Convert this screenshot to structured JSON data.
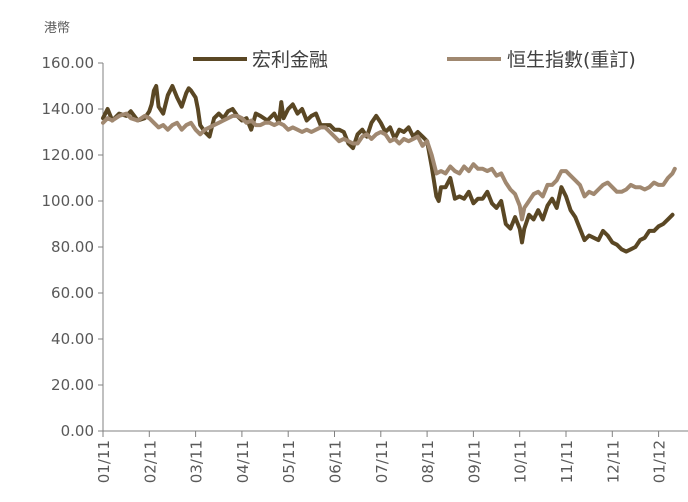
{
  "chart_data": {
    "type": "line",
    "title": "",
    "unit_label": "港幣",
    "xlabel": "",
    "ylabel": "",
    "ylim": [
      0,
      160
    ],
    "y_ticks": [
      0,
      20,
      40,
      60,
      80,
      100,
      120,
      140,
      160
    ],
    "y_tick_labels": [
      "0.00",
      "20.00",
      "40.00",
      "60.00",
      "80.00",
      "100.00",
      "120.00",
      "140.00",
      "160.00"
    ],
    "x_tick_labels": [
      "01/11",
      "02/11",
      "03/11",
      "04/11",
      "05/11",
      "06/11",
      "07/11",
      "08/11",
      "09/11",
      "10/11",
      "11/11",
      "12/11",
      "01/12"
    ],
    "legend_position": "top",
    "grid": false,
    "series": [
      {
        "name": "宏利金融",
        "color": "#5a4724",
        "values": [
          [
            0.0,
            136
          ],
          [
            0.1,
            140
          ],
          [
            0.2,
            135
          ],
          [
            0.35,
            138
          ],
          [
            0.5,
            137
          ],
          [
            0.6,
            139
          ],
          [
            0.75,
            135
          ],
          [
            0.9,
            136
          ],
          [
            1.0,
            139
          ],
          [
            1.05,
            142
          ],
          [
            1.1,
            148
          ],
          [
            1.15,
            150
          ],
          [
            1.2,
            141
          ],
          [
            1.3,
            138
          ],
          [
            1.4,
            146
          ],
          [
            1.5,
            150
          ],
          [
            1.6,
            145
          ],
          [
            1.7,
            141
          ],
          [
            1.8,
            147
          ],
          [
            1.85,
            149
          ],
          [
            1.9,
            148
          ],
          [
            2.0,
            145
          ],
          [
            2.05,
            140
          ],
          [
            2.1,
            133
          ],
          [
            2.2,
            130
          ],
          [
            2.3,
            128
          ],
          [
            2.4,
            136
          ],
          [
            2.5,
            138
          ],
          [
            2.6,
            136
          ],
          [
            2.7,
            139
          ],
          [
            2.8,
            140
          ],
          [
            2.9,
            137
          ],
          [
            3.0,
            135
          ],
          [
            3.1,
            136
          ],
          [
            3.2,
            131
          ],
          [
            3.3,
            138
          ],
          [
            3.4,
            137
          ],
          [
            3.55,
            135
          ],
          [
            3.7,
            138
          ],
          [
            3.8,
            134
          ],
          [
            3.85,
            143
          ],
          [
            3.9,
            136
          ],
          [
            4.0,
            140
          ],
          [
            4.1,
            142
          ],
          [
            4.2,
            138
          ],
          [
            4.3,
            140
          ],
          [
            4.4,
            135
          ],
          [
            4.5,
            137
          ],
          [
            4.6,
            138
          ],
          [
            4.7,
            133
          ],
          [
            4.8,
            133
          ],
          [
            4.9,
            133
          ],
          [
            5.0,
            131
          ],
          [
            5.1,
            131
          ],
          [
            5.2,
            130
          ],
          [
            5.3,
            125
          ],
          [
            5.4,
            123
          ],
          [
            5.5,
            129
          ],
          [
            5.6,
            131
          ],
          [
            5.7,
            128
          ],
          [
            5.8,
            134
          ],
          [
            5.9,
            137
          ],
          [
            6.0,
            134
          ],
          [
            6.1,
            130
          ],
          [
            6.2,
            132
          ],
          [
            6.3,
            127
          ],
          [
            6.4,
            131
          ],
          [
            6.5,
            130
          ],
          [
            6.6,
            132
          ],
          [
            6.7,
            128
          ],
          [
            6.8,
            130
          ],
          [
            6.9,
            128
          ],
          [
            7.0,
            126
          ],
          [
            7.1,
            115
          ],
          [
            7.2,
            102
          ],
          [
            7.25,
            100
          ],
          [
            7.3,
            106
          ],
          [
            7.4,
            106
          ],
          [
            7.5,
            110
          ],
          [
            7.6,
            101
          ],
          [
            7.7,
            102
          ],
          [
            7.8,
            101
          ],
          [
            7.9,
            104
          ],
          [
            8.0,
            99
          ],
          [
            8.1,
            101
          ],
          [
            8.2,
            101
          ],
          [
            8.3,
            104
          ],
          [
            8.4,
            99
          ],
          [
            8.5,
            97
          ],
          [
            8.6,
            100
          ],
          [
            8.7,
            90
          ],
          [
            8.8,
            88
          ],
          [
            8.9,
            93
          ],
          [
            9.0,
            88
          ],
          [
            9.05,
            82
          ],
          [
            9.1,
            88
          ],
          [
            9.2,
            94
          ],
          [
            9.3,
            92
          ],
          [
            9.4,
            96
          ],
          [
            9.5,
            92
          ],
          [
            9.6,
            98
          ],
          [
            9.7,
            101
          ],
          [
            9.8,
            97
          ],
          [
            9.9,
            106
          ],
          [
            10.0,
            102
          ],
          [
            10.1,
            96
          ],
          [
            10.2,
            93
          ],
          [
            10.3,
            88
          ],
          [
            10.4,
            83
          ],
          [
            10.5,
            85
          ],
          [
            10.6,
            84
          ],
          [
            10.7,
            83
          ],
          [
            10.8,
            87
          ],
          [
            10.9,
            85
          ],
          [
            11.0,
            82
          ],
          [
            11.1,
            81
          ],
          [
            11.2,
            79
          ],
          [
            11.3,
            78
          ],
          [
            11.4,
            79
          ],
          [
            11.5,
            80
          ],
          [
            11.6,
            83
          ],
          [
            11.7,
            84
          ],
          [
            11.8,
            87
          ],
          [
            11.9,
            87
          ],
          [
            12.0,
            89
          ],
          [
            12.1,
            90
          ],
          [
            12.2,
            92
          ],
          [
            12.3,
            94
          ]
        ]
      },
      {
        "name": "恒生指數(重訂)",
        "color": "#a08870",
        "values": [
          [
            0.0,
            134
          ],
          [
            0.1,
            136
          ],
          [
            0.2,
            135
          ],
          [
            0.35,
            137
          ],
          [
            0.5,
            138
          ],
          [
            0.6,
            136
          ],
          [
            0.75,
            135
          ],
          [
            0.9,
            137
          ],
          [
            1.0,
            136
          ],
          [
            1.1,
            134
          ],
          [
            1.2,
            132
          ],
          [
            1.3,
            133
          ],
          [
            1.4,
            131
          ],
          [
            1.5,
            133
          ],
          [
            1.6,
            134
          ],
          [
            1.7,
            131
          ],
          [
            1.8,
            133
          ],
          [
            1.9,
            134
          ],
          [
            2.0,
            131
          ],
          [
            2.1,
            129
          ],
          [
            2.2,
            131
          ],
          [
            2.3,
            132
          ],
          [
            2.4,
            133
          ],
          [
            2.5,
            134
          ],
          [
            2.6,
            135
          ],
          [
            2.7,
            136
          ],
          [
            2.8,
            137
          ],
          [
            2.9,
            137
          ],
          [
            3.0,
            136
          ],
          [
            3.1,
            134
          ],
          [
            3.2,
            135
          ],
          [
            3.3,
            133
          ],
          [
            3.4,
            133
          ],
          [
            3.5,
            134
          ],
          [
            3.6,
            134
          ],
          [
            3.7,
            133
          ],
          [
            3.8,
            134
          ],
          [
            3.9,
            133
          ],
          [
            4.0,
            131
          ],
          [
            4.1,
            132
          ],
          [
            4.2,
            131
          ],
          [
            4.3,
            130
          ],
          [
            4.4,
            131
          ],
          [
            4.5,
            130
          ],
          [
            4.6,
            131
          ],
          [
            4.7,
            132
          ],
          [
            4.8,
            132
          ],
          [
            4.9,
            130
          ],
          [
            5.0,
            128
          ],
          [
            5.1,
            126
          ],
          [
            5.2,
            127
          ],
          [
            5.3,
            126
          ],
          [
            5.4,
            125
          ],
          [
            5.5,
            125
          ],
          [
            5.6,
            128
          ],
          [
            5.7,
            129
          ],
          [
            5.8,
            127
          ],
          [
            5.9,
            129
          ],
          [
            6.0,
            130
          ],
          [
            6.1,
            129
          ],
          [
            6.2,
            126
          ],
          [
            6.3,
            127
          ],
          [
            6.4,
            125
          ],
          [
            6.5,
            127
          ],
          [
            6.6,
            126
          ],
          [
            6.7,
            127
          ],
          [
            6.8,
            128
          ],
          [
            6.9,
            124
          ],
          [
            7.0,
            126
          ],
          [
            7.1,
            120
          ],
          [
            7.2,
            112
          ],
          [
            7.3,
            113
          ],
          [
            7.4,
            112
          ],
          [
            7.5,
            115
          ],
          [
            7.6,
            113
          ],
          [
            7.7,
            112
          ],
          [
            7.8,
            115
          ],
          [
            7.9,
            113
          ],
          [
            8.0,
            116
          ],
          [
            8.1,
            114
          ],
          [
            8.2,
            114
          ],
          [
            8.3,
            113
          ],
          [
            8.4,
            114
          ],
          [
            8.5,
            111
          ],
          [
            8.6,
            112
          ],
          [
            8.7,
            108
          ],
          [
            8.8,
            105
          ],
          [
            8.9,
            103
          ],
          [
            9.0,
            98
          ],
          [
            9.05,
            92
          ],
          [
            9.1,
            97
          ],
          [
            9.2,
            100
          ],
          [
            9.3,
            103
          ],
          [
            9.4,
            104
          ],
          [
            9.5,
            102
          ],
          [
            9.6,
            107
          ],
          [
            9.7,
            107
          ],
          [
            9.8,
            109
          ],
          [
            9.9,
            113
          ],
          [
            10.0,
            113
          ],
          [
            10.1,
            111
          ],
          [
            10.2,
            109
          ],
          [
            10.3,
            107
          ],
          [
            10.4,
            102
          ],
          [
            10.5,
            104
          ],
          [
            10.6,
            103
          ],
          [
            10.7,
            105
          ],
          [
            10.8,
            107
          ],
          [
            10.9,
            108
          ],
          [
            11.0,
            106
          ],
          [
            11.1,
            104
          ],
          [
            11.2,
            104
          ],
          [
            11.3,
            105
          ],
          [
            11.4,
            107
          ],
          [
            11.5,
            106
          ],
          [
            11.6,
            106
          ],
          [
            11.7,
            105
          ],
          [
            11.8,
            106
          ],
          [
            11.9,
            108
          ],
          [
            12.0,
            107
          ],
          [
            12.1,
            107
          ],
          [
            12.2,
            110
          ],
          [
            12.3,
            112
          ],
          [
            12.35,
            114
          ]
        ]
      }
    ]
  }
}
